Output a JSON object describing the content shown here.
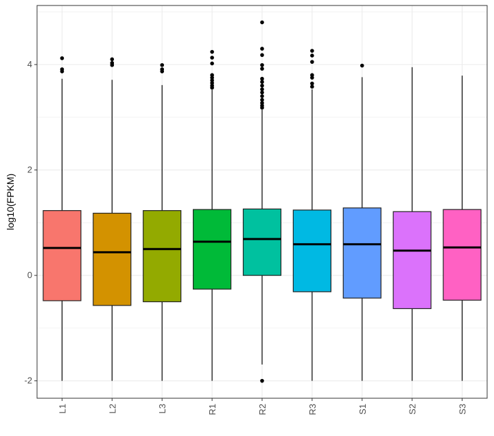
{
  "chart_data": {
    "type": "boxplot",
    "title": "",
    "xlabel": "",
    "ylabel": "log10(FPKM)",
    "ylim": [
      -2.33,
      5.12
    ],
    "yticks": [
      -2,
      0,
      2,
      4
    ],
    "grid": true,
    "legend": "none",
    "categories": [
      "L1",
      "L2",
      "L3",
      "R1",
      "R2",
      "R3",
      "S1",
      "S2",
      "S3"
    ],
    "colors": [
      "#F8766D",
      "#D39200",
      "#93AA00",
      "#00BA38",
      "#00C19F",
      "#00B9E3",
      "#619CFF",
      "#DB72FB",
      "#FF61C3"
    ],
    "boxes": [
      {
        "q1": -0.48,
        "median": 0.52,
        "q3": 1.23,
        "whisker_low": -2,
        "whisker_high": 3.73,
        "outliers": [
          4.12,
          3.91,
          3.87
        ]
      },
      {
        "q1": -0.57,
        "median": 0.44,
        "q3": 1.18,
        "whisker_low": -2,
        "whisker_high": 3.71,
        "outliers": [
          4.1,
          4.03,
          3.99
        ]
      },
      {
        "q1": -0.5,
        "median": 0.5,
        "q3": 1.23,
        "whisker_low": -2,
        "whisker_high": 3.61,
        "outliers": [
          3.99,
          3.91,
          3.87
        ]
      },
      {
        "q1": -0.26,
        "median": 0.64,
        "q3": 1.25,
        "whisker_low": -2,
        "whisker_high": 3.52,
        "outliers": [
          4.24,
          4.13,
          4.02,
          3.8,
          3.75,
          3.7,
          3.65,
          3.6,
          3.56
        ]
      },
      {
        "q1": 0.0,
        "median": 0.69,
        "q3": 1.26,
        "whisker_low": -1.69,
        "whisker_high": 3.14,
        "outliers": [
          4.8,
          4.3,
          4.18,
          3.99,
          3.92,
          3.73,
          3.67,
          3.6,
          3.53,
          3.47,
          3.4,
          3.33,
          3.27,
          3.22,
          3.18,
          -2.0
        ]
      },
      {
        "q1": -0.31,
        "median": 0.59,
        "q3": 1.24,
        "whisker_low": -2,
        "whisker_high": 3.53,
        "outliers": [
          4.26,
          4.17,
          4.05,
          3.8,
          3.75,
          3.64,
          3.58
        ]
      },
      {
        "q1": -0.43,
        "median": 0.59,
        "q3": 1.28,
        "whisker_low": -2,
        "whisker_high": 3.76,
        "outliers": [
          3.98
        ]
      },
      {
        "q1": -0.63,
        "median": 0.47,
        "q3": 1.21,
        "whisker_low": -2,
        "whisker_high": 3.95,
        "outliers": []
      },
      {
        "q1": -0.47,
        "median": 0.53,
        "q3": 1.25,
        "whisker_low": -2,
        "whisker_high": 3.79,
        "outliers": []
      }
    ]
  }
}
